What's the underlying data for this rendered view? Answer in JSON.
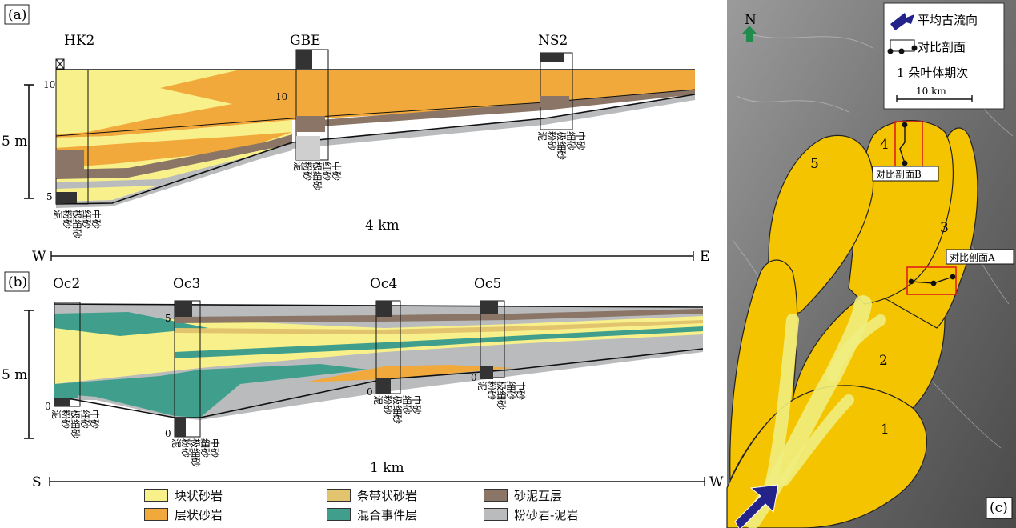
{
  "panels": {
    "a": {
      "tag": "(a)",
      "wells": [
        "HK2",
        "GBE",
        "NS2"
      ],
      "scale_label": "5 m",
      "depth_marks": [
        "10",
        "5",
        "10"
      ],
      "distance": "4 km",
      "dir_left": "W",
      "dir_right": "E",
      "grain_labels": [
        "泥",
        "粉砂",
        "极细砂",
        "细砂",
        "中砂"
      ]
    },
    "b": {
      "tag": "(b)",
      "wells": [
        "Oc2",
        "Oc3",
        "Oc4",
        "Oc5"
      ],
      "scale_label": "5 m",
      "depth_marks": [
        "0",
        "5",
        "0",
        "0",
        "0"
      ],
      "distance": "1 km",
      "dir_left": "S",
      "dir_right": "W",
      "grain_labels": [
        "泥",
        "粉砂",
        "极细砂",
        "细砂",
        "中砂"
      ]
    },
    "c": {
      "tag": "(c)",
      "north": "N",
      "legend_flow": "平均古流向",
      "legend_section": "对比剖面",
      "legend_lobe": "1 朵叶体期次",
      "scale": "10 km",
      "lobes": [
        "1",
        "2",
        "3",
        "4",
        "5"
      ],
      "section_a": "对比剖面A",
      "section_b": "对比剖面B"
    }
  },
  "legend": [
    {
      "label": "块状砂岩",
      "color": "#f8f08a"
    },
    {
      "label": "层状砂岩",
      "color": "#f2a93b"
    },
    {
      "label": "条带状砂岩",
      "color": "#e2c36e"
    },
    {
      "label": "混合事件层",
      "color": "#3f9f8c"
    },
    {
      "label": "砂泥互层",
      "color": "#8a7566"
    },
    {
      "label": "粉砂岩-泥岩",
      "color": "#b9bbbd"
    }
  ],
  "colors": {
    "massive_sand": "#f8f08a",
    "bedded_sand": "#f2a93b",
    "banded_sand": "#e2c36e",
    "hybrid": "#3f9f8c",
    "heterolithic": "#8a7566",
    "mud": "#b9bbbd",
    "lobe": "#f5c400",
    "channel": "#f0ee80",
    "arrow": "#23238a",
    "north_arrow": "#1f8b4c",
    "frame_red": "#e0201a"
  }
}
